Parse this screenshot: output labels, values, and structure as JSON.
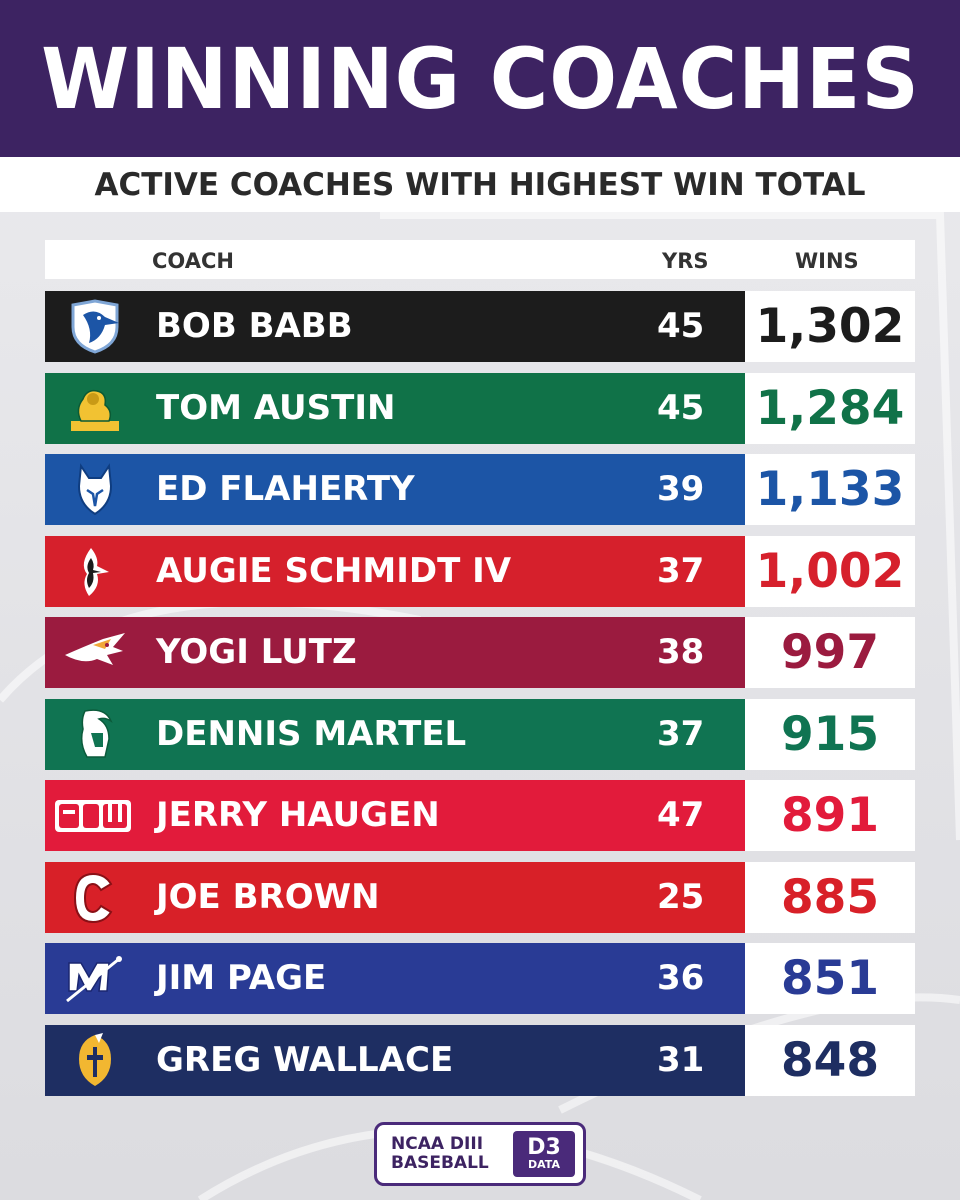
{
  "header": {
    "title": "WINNING COACHES",
    "subtitle": "ACTIVE COACHES WITH HIGHEST WIN TOTAL"
  },
  "columns": {
    "coach": "COACH",
    "yrs": "YRS",
    "wins": "WINS"
  },
  "rows": [
    {
      "coach": "BOB BABB",
      "yrs": "45",
      "wins": "1,302",
      "color": "#1c1c1c",
      "wins_color": "#1c1c1c",
      "logo": "blue-jay-logo-icon"
    },
    {
      "coach": "TOM AUSTIN",
      "yrs": "45",
      "wins": "1,284",
      "color": "#107248",
      "wins_color": "#107248",
      "logo": "lion-logo-icon"
    },
    {
      "coach": "ED FLAHERTY",
      "yrs": "39",
      "wins": "1,133",
      "color": "#1c55a6",
      "wins_color": "#1c55a6",
      "logo": "husky-logo-icon"
    },
    {
      "coach": "AUGIE SCHMIDT IV",
      "yrs": "37",
      "wins": "1,002",
      "color": "#d6202c",
      "wins_color": "#d6202c",
      "logo": "cardinal-logo-icon"
    },
    {
      "coach": "YOGI LUTZ",
      "yrs": "38",
      "wins": "997",
      "color": "#9b1b3f",
      "wins_color": "#9b1b3f",
      "logo": "red-hawk-logo-icon"
    },
    {
      "coach": "DENNIS MARTEL",
      "yrs": "37",
      "wins": "915",
      "color": "#107452",
      "wins_color": "#107452",
      "logo": "spartan-logo-icon"
    },
    {
      "coach": "JERRY HAUGEN",
      "yrs": "47",
      "wins": "891",
      "color": "#e21b3b",
      "wins_color": "#e21b3b",
      "logo": "sju-logo-icon"
    },
    {
      "coach": "JOE BROWN",
      "yrs": "25",
      "wins": "885",
      "color": "#d82028",
      "wins_color": "#d82028",
      "logo": "red-c-logo-icon"
    },
    {
      "coach": "JIM PAGE",
      "yrs": "36",
      "wins": "851",
      "color": "#293b95",
      "wins_color": "#293b95",
      "logo": "m-sword-logo-icon"
    },
    {
      "coach": "GREG WALLACE",
      "yrs": "31",
      "wins": "848",
      "color": "#1e2e62",
      "wins_color": "#1e2e62",
      "logo": "knight-logo-icon"
    }
  ],
  "brand": {
    "line1": "NCAA DIII",
    "line2": "BASEBALL",
    "mark": "D3",
    "mark_sub": "DATA"
  }
}
